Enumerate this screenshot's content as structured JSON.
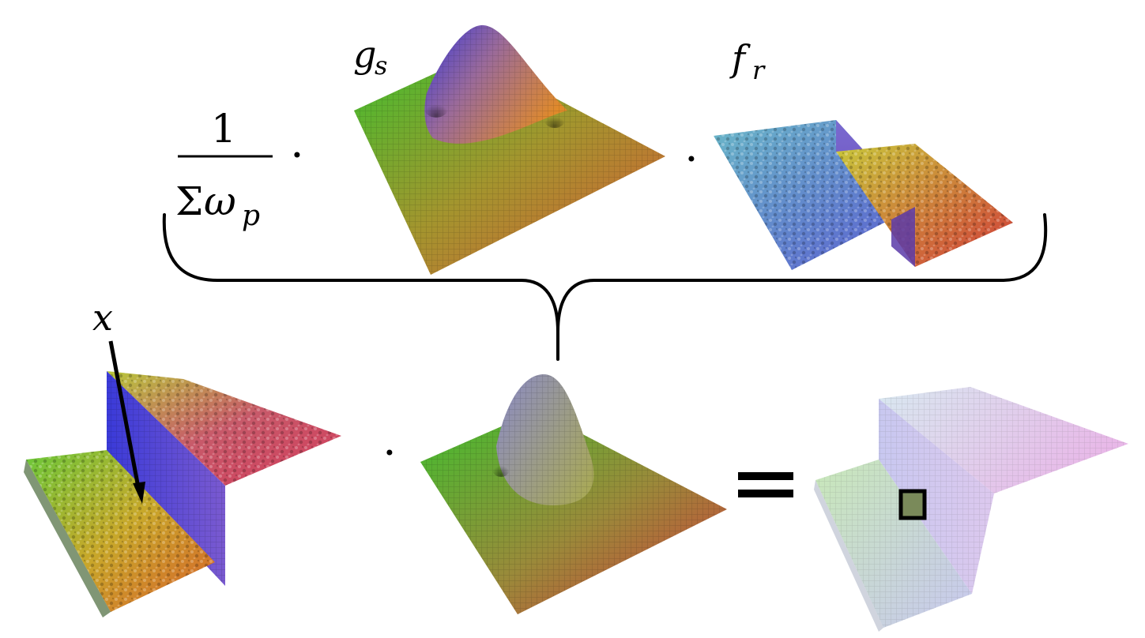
{
  "formula": {
    "numerator": "1",
    "denominator_sigma": "Σ",
    "denominator_omega": "ω",
    "denominator_subscript": "p",
    "dot": "·",
    "equals": "="
  },
  "labels": {
    "spatial_kernel": {
      "base": "g",
      "subscript": "s"
    },
    "range_kernel": {
      "base": "f",
      "subscript": "r"
    },
    "input_pixel": "x"
  },
  "colors": {
    "green": "#3fbf2f",
    "blue": "#3a3ad8",
    "orange": "#e08a2a",
    "red": "#d23a3a",
    "cyan": "#6ab8c8",
    "yellow": "#c8c83a",
    "pastel_green": "#c8e8b8",
    "pastel_blue": "#c8c8f0",
    "pastel_pink": "#e8b8e8"
  }
}
